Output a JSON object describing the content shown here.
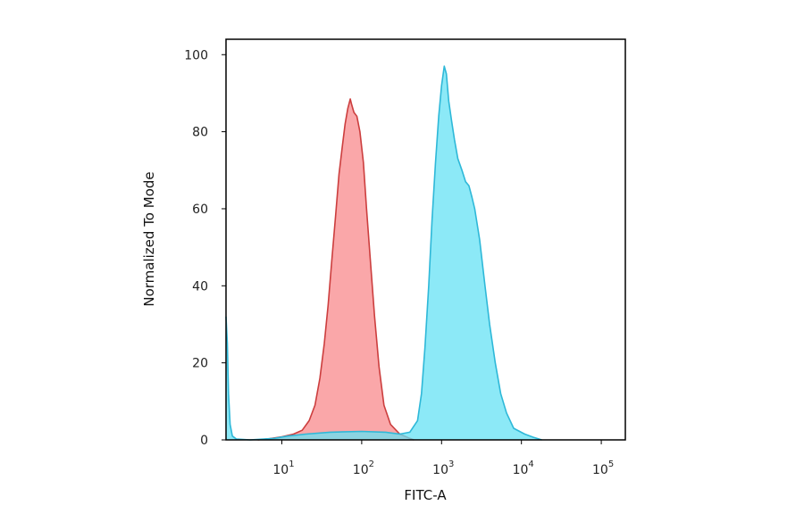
{
  "chart_data": {
    "type": "area",
    "title": "",
    "xlabel": "FITC-A",
    "ylabel": "Normalized To Mode",
    "x_scale": "log",
    "xlim": [
      2,
      200000
    ],
    "ylim": [
      0,
      104
    ],
    "grid": false,
    "legend": "none",
    "x_ticks": [
      {
        "value": 10,
        "base": "10",
        "exp": "1"
      },
      {
        "value": 100,
        "base": "10",
        "exp": "2"
      },
      {
        "value": 1000,
        "base": "10",
        "exp": "3"
      },
      {
        "value": 10000,
        "base": "10",
        "exp": "4"
      },
      {
        "value": 100000,
        "base": "10",
        "exp": "5"
      }
    ],
    "y_ticks": [
      {
        "value": 0,
        "label": "0"
      },
      {
        "value": 20,
        "label": "20"
      },
      {
        "value": 40,
        "label": "40"
      },
      {
        "value": 60,
        "label": "60"
      },
      {
        "value": 80,
        "label": "80"
      },
      {
        "value": 100,
        "label": "100"
      }
    ],
    "series": [
      {
        "fill": "#fa9da0",
        "stroke": "#cc3e3e",
        "points": [
          [
            5,
            0
          ],
          [
            7,
            0.3
          ],
          [
            10,
            0.8
          ],
          [
            14,
            1.5
          ],
          [
            18,
            2.5
          ],
          [
            22,
            5
          ],
          [
            26,
            9
          ],
          [
            30,
            16
          ],
          [
            34,
            25
          ],
          [
            38,
            35
          ],
          [
            42,
            46
          ],
          [
            47,
            58
          ],
          [
            52,
            69
          ],
          [
            57,
            76
          ],
          [
            62,
            82
          ],
          [
            67,
            86
          ],
          [
            72,
            88.5
          ],
          [
            75,
            87
          ],
          [
            80,
            85
          ],
          [
            87,
            84
          ],
          [
            95,
            80
          ],
          [
            105,
            72
          ],
          [
            115,
            60
          ],
          [
            130,
            45
          ],
          [
            145,
            32
          ],
          [
            165,
            19
          ],
          [
            190,
            9
          ],
          [
            230,
            4
          ],
          [
            300,
            1.5
          ],
          [
            400,
            0.4
          ],
          [
            450,
            0
          ]
        ]
      },
      {
        "fill": "#66e2f4",
        "stroke": "#2eb8d8",
        "points": [
          [
            2,
            32
          ],
          [
            2.08,
            25
          ],
          [
            2.15,
            12
          ],
          [
            2.25,
            4
          ],
          [
            2.4,
            1
          ],
          [
            2.7,
            0.2
          ],
          [
            4,
            0
          ],
          [
            8,
            0.4
          ],
          [
            12,
            1
          ],
          [
            20,
            1.5
          ],
          [
            40,
            2
          ],
          [
            100,
            2.2
          ],
          [
            200,
            2
          ],
          [
            300,
            1.5
          ],
          [
            400,
            2
          ],
          [
            500,
            5
          ],
          [
            560,
            12
          ],
          [
            620,
            24
          ],
          [
            690,
            40
          ],
          [
            760,
            57
          ],
          [
            840,
            72
          ],
          [
            920,
            84
          ],
          [
            1000,
            92
          ],
          [
            1080,
            97
          ],
          [
            1150,
            95
          ],
          [
            1230,
            88
          ],
          [
            1330,
            83
          ],
          [
            1450,
            78
          ],
          [
            1600,
            73
          ],
          [
            1800,
            70
          ],
          [
            2000,
            67
          ],
          [
            2200,
            66
          ],
          [
            2400,
            63
          ],
          [
            2600,
            60
          ],
          [
            3000,
            52
          ],
          [
            3500,
            40
          ],
          [
            4000,
            30
          ],
          [
            4700,
            20
          ],
          [
            5500,
            12
          ],
          [
            6500,
            7
          ],
          [
            8000,
            3
          ],
          [
            11000,
            1.5
          ],
          [
            14000,
            0.7
          ],
          [
            18000,
            0
          ]
        ]
      }
    ]
  }
}
